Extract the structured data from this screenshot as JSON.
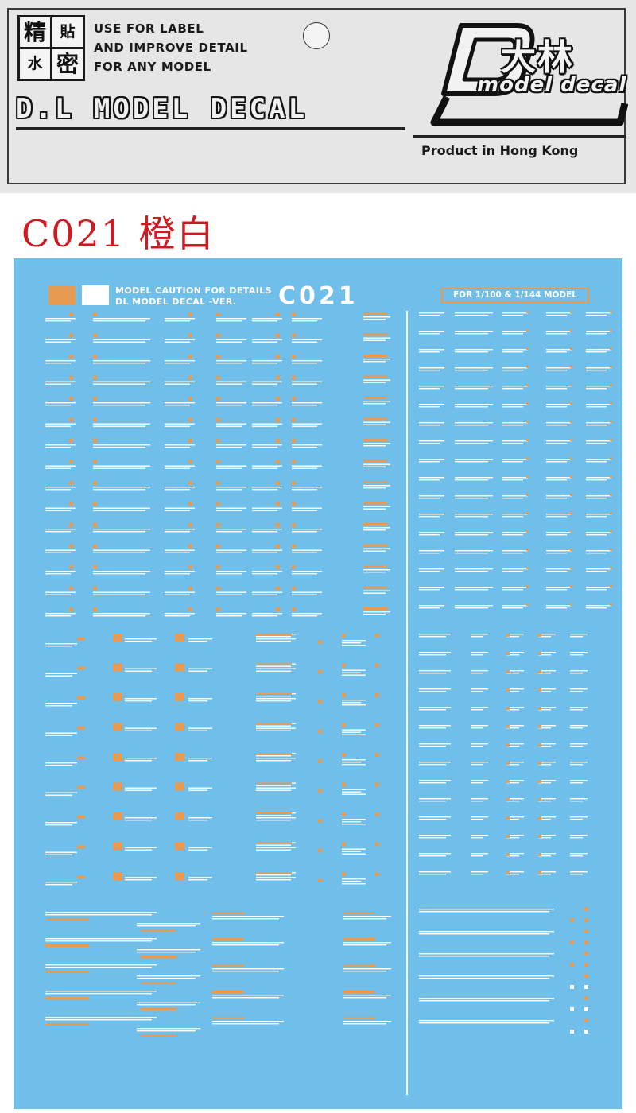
{
  "header": {
    "logo_chars": [
      "精",
      "貼",
      "水",
      "密"
    ],
    "tagline": [
      "USE FOR LABEL",
      "AND IMPROVE DETAIL",
      "FOR ANY MODEL"
    ],
    "title": "D.L MODEL DECAL",
    "brand_cn": "大林",
    "brand_en": "model decal",
    "origin": "Product in Hong Kong"
  },
  "product_code": "C021 橙白",
  "sheet": {
    "caption": [
      "MODEL CAUTION FOR DETAILS",
      "DL MODEL DECAL -VER."
    ],
    "code": "C021",
    "scale_label": "FOR 1/100 & 1/144 MODEL",
    "colors": {
      "orange": "#e79a52",
      "white": "#ffffff",
      "background": "#6fbfea"
    }
  }
}
